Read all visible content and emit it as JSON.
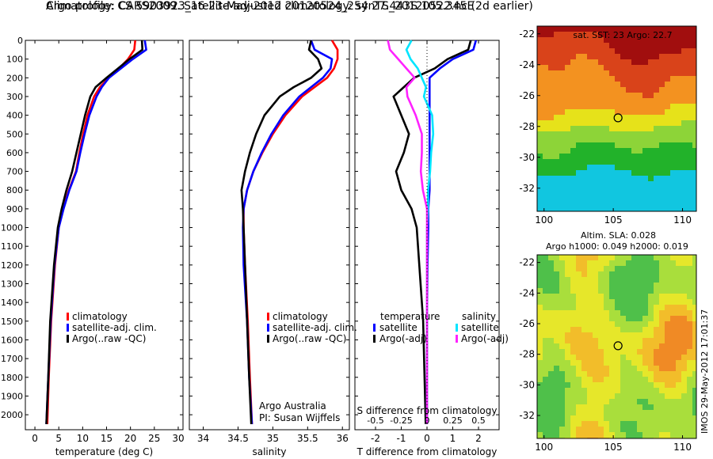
{
  "header": {
    "line1": "Argo profile: CS 5903923_16 23-May-2012 20120524_254 27.443S 105.345E",
    "line2": "Climatology: CARS2009. Satellite-adjusted climatology: synTS_20120522.nc (2d earlier)"
  },
  "colors": {
    "climatology": "#ff0000",
    "satellite": "#0000ff",
    "argo": "#000000",
    "salinity_satellite": "#00e5ff",
    "salinity_argo": "#ff22ff"
  },
  "chart_data": [
    {
      "type": "line",
      "panel": "temperature",
      "xlabel": "temperature (deg C)",
      "ylabel": "",
      "xlim": [
        -2,
        31
      ],
      "ylim": [
        2080,
        0
      ],
      "xticks": [
        "0",
        "5",
        "10",
        "15",
        "20",
        "25",
        "30"
      ],
      "yticks": [
        "0",
        "100",
        "200",
        "300",
        "400",
        "500",
        "600",
        "700",
        "800",
        "900",
        "1000",
        "1100",
        "1200",
        "1300",
        "1400",
        "1500",
        "1600",
        "1700",
        "1800",
        "1900",
        "2000"
      ],
      "legend": [
        "climatology",
        "satellite-adj. clim.",
        "Argo(..raw -QC)"
      ],
      "legend_position": "lower-right",
      "series": [
        {
          "name": "climatology",
          "depth": [
            0,
            50,
            100,
            150,
            200,
            250,
            300,
            400,
            500,
            600,
            700,
            800,
            900,
            1000,
            1200,
            1500,
            1800,
            2050
          ],
          "values": [
            21.0,
            20.8,
            19.5,
            17.6,
            15.5,
            13.6,
            12.4,
            11.0,
            10.1,
            9.3,
            8.6,
            7.1,
            5.9,
            5.0,
            4.2,
            3.4,
            2.9,
            2.6
          ]
        },
        {
          "name": "satellite-adj. clim.",
          "depth": [
            0,
            50,
            100,
            150,
            200,
            250,
            300,
            400,
            500,
            600,
            700,
            800,
            900,
            1000,
            1200,
            1500,
            1800,
            2050
          ],
          "values": [
            23.0,
            23.3,
            20.5,
            18.0,
            15.5,
            14.0,
            12.9,
            11.4,
            10.4,
            9.5,
            8.7,
            7.2,
            6.0,
            5.0,
            4.1,
            3.3,
            2.8,
            2.4
          ]
        },
        {
          "name": "Argo(..raw -QC)",
          "depth": [
            0,
            50,
            100,
            150,
            200,
            250,
            300,
            400,
            500,
            600,
            700,
            800,
            900,
            1000,
            1200,
            1500,
            1800,
            2050
          ],
          "values": [
            22.4,
            22.5,
            19.8,
            17.4,
            15.0,
            12.7,
            11.6,
            10.5,
            9.6,
            8.7,
            7.8,
            6.6,
            5.6,
            4.8,
            4.0,
            3.2,
            2.8,
            2.4
          ]
        }
      ]
    },
    {
      "type": "line",
      "panel": "salinity",
      "xlabel": "salinity",
      "ylabel": "",
      "xlim": [
        33.8,
        36.1
      ],
      "ylim": [
        2080,
        0
      ],
      "xticks": [
        "34",
        "34.5",
        "35",
        "35.5",
        "36"
      ],
      "legend": [
        "climatology",
        "satellite-adj. clim.",
        "Argo(..raw -QC)"
      ],
      "legend_position": "lower-right",
      "annotations": [
        "Argo Australia",
        "PI: Susan Wijffels"
      ],
      "series": [
        {
          "name": "climatology",
          "depth": [
            0,
            50,
            100,
            150,
            200,
            250,
            300,
            400,
            500,
            600,
            700,
            800,
            900,
            1000,
            1200,
            1500,
            1800,
            2050
          ],
          "values": [
            35.85,
            35.93,
            35.93,
            35.88,
            35.78,
            35.6,
            35.42,
            35.18,
            35.0,
            34.85,
            34.72,
            34.63,
            34.58,
            34.58,
            34.6,
            34.64,
            34.67,
            34.7
          ]
        },
        {
          "name": "satellite-adj. clim.",
          "depth": [
            0,
            50,
            100,
            150,
            200,
            250,
            300,
            400,
            500,
            600,
            700,
            800,
            900,
            1000,
            1200,
            1500,
            1800,
            2050
          ],
          "values": [
            35.55,
            35.6,
            35.85,
            35.83,
            35.72,
            35.55,
            35.38,
            35.15,
            34.98,
            34.84,
            34.72,
            34.63,
            34.58,
            34.57,
            34.58,
            34.63,
            34.66,
            34.7
          ]
        },
        {
          "name": "Argo(..raw -QC)",
          "depth": [
            0,
            50,
            100,
            150,
            200,
            250,
            300,
            400,
            500,
            600,
            700,
            800,
            900,
            1000,
            1200,
            1500,
            1800,
            2050
          ],
          "values": [
            35.55,
            35.52,
            35.65,
            35.7,
            35.55,
            35.3,
            35.1,
            34.88,
            34.76,
            34.67,
            34.6,
            34.55,
            34.57,
            34.58,
            34.6,
            34.63,
            34.66,
            34.69
          ]
        }
      ]
    },
    {
      "type": "line",
      "panel": "difference",
      "xlabel": "T difference from climatology",
      "x2label": "S difference from climatology",
      "xlim": [
        -2.8,
        2.8
      ],
      "ylim": [
        2080,
        0
      ],
      "xticks": [
        "-2",
        "-1",
        "0",
        "1",
        "2"
      ],
      "x2ticks": [
        "-0.5",
        "-0.25",
        "0",
        "0.25",
        "0.5"
      ],
      "legend_titles": [
        "temperature",
        "salinity"
      ],
      "legend": [
        "satellite",
        "Argo(-adj)",
        "satellite",
        "Argo(-adj)"
      ],
      "series": [
        {
          "name": "satellite",
          "group": "temperature",
          "depth": [
            0,
            50,
            100,
            150,
            200,
            250,
            300,
            400,
            500,
            600,
            700,
            800,
            900,
            1000,
            1200,
            1500,
            2050
          ],
          "values": [
            1.9,
            1.8,
            1.0,
            0.5,
            0.1,
            0.1,
            0.1,
            0.1,
            0.1,
            0.1,
            0.1,
            0.1,
            0.05,
            0.05,
            0.02,
            0.0,
            0.0
          ]
        },
        {
          "name": "Argo(-adj)",
          "group": "temperature",
          "depth": [
            0,
            50,
            100,
            150,
            200,
            250,
            300,
            400,
            500,
            600,
            700,
            800,
            900,
            1000,
            1200,
            1500,
            2050
          ],
          "values": [
            1.7,
            1.6,
            0.8,
            0.3,
            -0.5,
            -0.9,
            -1.3,
            -1.0,
            -0.7,
            -0.9,
            -1.2,
            -1.0,
            -0.6,
            -0.4,
            -0.3,
            -0.15,
            -0.05
          ]
        },
        {
          "name": "satellite",
          "group": "salinity",
          "depth": [
            0,
            50,
            100,
            150,
            200,
            250,
            300,
            400,
            500,
            600,
            700,
            800,
            900,
            1000,
            1200,
            1500,
            2050
          ],
          "values": [
            -0.15,
            -0.2,
            -0.16,
            -0.09,
            -0.05,
            -0.01,
            -0.03,
            0.05,
            0.06,
            0.04,
            0.03,
            0.01,
            0.01,
            0.0,
            0.0,
            0.0,
            0.0
          ]
        },
        {
          "name": "Argo(-adj)",
          "group": "salinity",
          "depth": [
            0,
            50,
            100,
            150,
            200,
            250,
            300,
            400,
            500,
            600,
            700,
            800,
            900,
            1000,
            1200,
            1500,
            2050
          ],
          "values": [
            -0.38,
            -0.36,
            -0.28,
            -0.2,
            -0.12,
            -0.2,
            -0.19,
            -0.11,
            -0.05,
            -0.05,
            -0.06,
            -0.04,
            0.0,
            0.0,
            0.0,
            0.0,
            0.0
          ]
        }
      ]
    },
    {
      "type": "heatmap",
      "panel": "sst",
      "title": "sat. SST: 23 Argo: 22.7",
      "xticks": [
        "100",
        "105",
        "110"
      ],
      "yticks": [
        "-22",
        "-24",
        "-26",
        "-28",
        "-30",
        "-32"
      ],
      "xlim": [
        99.5,
        111
      ],
      "ylim": [
        -33.5,
        -21.5
      ],
      "marker": {
        "lon": 105.345,
        "lat": -27.443
      }
    },
    {
      "type": "heatmap",
      "panel": "sla",
      "title": "Altim. SLA: 0.028",
      "subtitle": "Argo h1000: 0.049 h2000: 0.019",
      "xticks": [
        "100",
        "105",
        "110"
      ],
      "yticks": [
        "-22",
        "-24",
        "-26",
        "-28",
        "-30",
        "-32"
      ],
      "xlim": [
        99.5,
        111
      ],
      "ylim": [
        -33.5,
        -21.5
      ],
      "marker": {
        "lon": 105.345,
        "lat": -27.443
      }
    }
  ],
  "legend_left": {
    "items": [
      "climatology",
      "satellite-adj. clim.",
      "Argo(..raw -QC)"
    ]
  },
  "legend_mid": {
    "items": [
      "climatology",
      "satellite-adj. clim.",
      "Argo(..raw -QC)"
    ]
  },
  "legend_diff": {
    "title_t": "temperature",
    "title_s": "salinity",
    "t1": "satellite",
    "t2": "Argo(-adj)",
    "s1": "satellite",
    "s2": "Argo(-adj)"
  },
  "credit": {
    "line1": "Argo Australia",
    "line2": "PI: Susan Wijffels"
  },
  "sst_title": "sat. SST: 23 Argo: 22.7",
  "sla_title1": "Altim. SLA: 0.028",
  "sla_title2": "Argo h1000: 0.049 h2000: 0.019",
  "stamp": "IMOS 29-May-2012 17:01:37"
}
